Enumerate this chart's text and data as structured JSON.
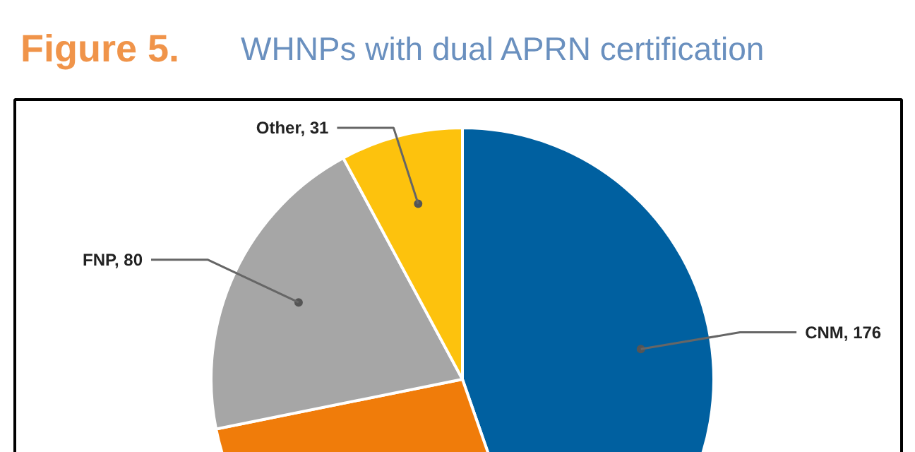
{
  "chart_data": {
    "type": "pie",
    "title": "Figure 5.",
    "subtitle": "WHNPs with dual APRN certification",
    "categories": [
      "CNM",
      null,
      "FNP",
      "Other"
    ],
    "values": [
      176,
      107,
      80,
      31
    ],
    "colors": [
      "#0060a0",
      "#f07c0a",
      "#a6a6a6",
      "#fdc20d"
    ],
    "value_labels": [
      ", 176",
      null,
      ", 80",
      ", 31"
    ]
  }
}
